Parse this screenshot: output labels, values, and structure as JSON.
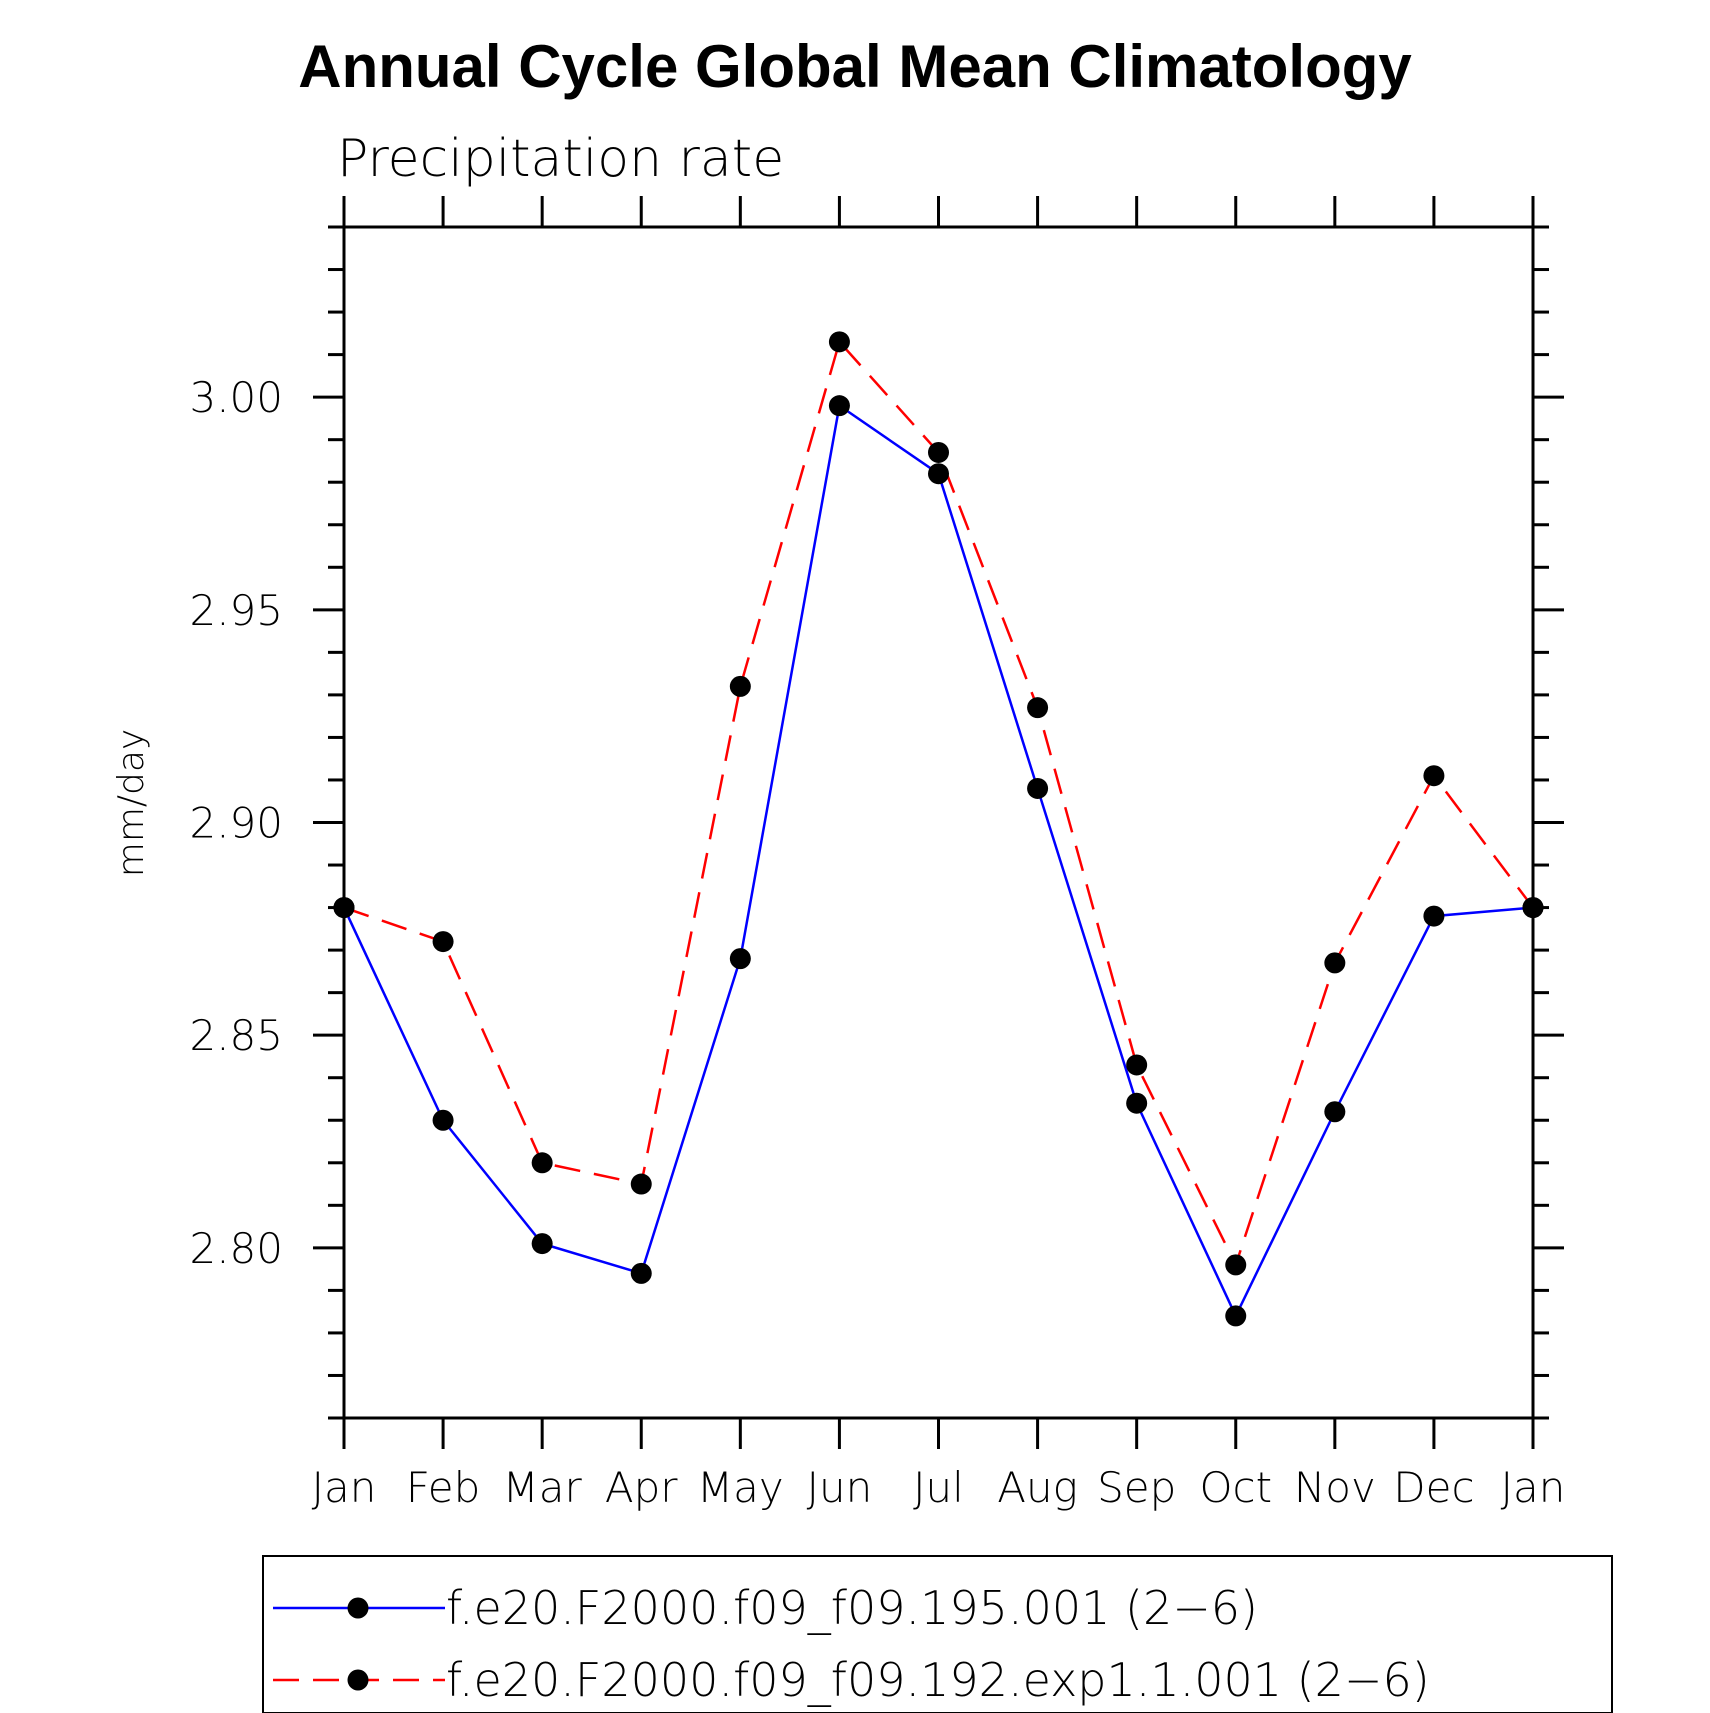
{
  "chart_data": {
    "type": "line",
    "title": "Annual Cycle Global Mean Climatology",
    "subtitle": "Precipitation rate",
    "xlabel": "",
    "ylabel": "mm/day",
    "categories": [
      "Jan",
      "Feb",
      "Mar",
      "Apr",
      "May",
      "Jun",
      "Jul",
      "Aug",
      "Sep",
      "Oct",
      "Nov",
      "Dec",
      "Jan"
    ],
    "ylim": [
      2.76,
      3.04
    ],
    "yticks": [
      "2.80",
      "2.85",
      "2.90",
      "2.95",
      "3.00"
    ],
    "ytick_values": [
      2.8,
      2.85,
      2.9,
      2.95,
      3.0
    ],
    "grid": false,
    "legend_position": "bottom",
    "series": [
      {
        "name": "f.e20.F2000.f09_f09.195.001 (2−6)",
        "color": "#0000ff",
        "dash": "solid",
        "marker": "filled-circle",
        "values": [
          2.88,
          2.83,
          2.801,
          2.794,
          2.868,
          2.998,
          2.982,
          2.908,
          2.834,
          2.784,
          2.832,
          2.878,
          2.88
        ]
      },
      {
        "name": "f.e20.F2000.f09_f09.192.exp1.1.001 (2−6)",
        "color": "#ff0000",
        "dash": "dashed",
        "marker": "filled-circle",
        "values": [
          2.88,
          2.872,
          2.82,
          2.815,
          2.932,
          3.013,
          2.987,
          2.927,
          2.843,
          2.796,
          2.867,
          2.911,
          2.88
        ]
      }
    ]
  }
}
